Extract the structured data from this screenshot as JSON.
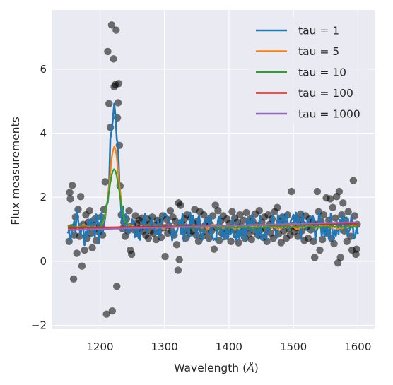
{
  "chart_data": {
    "type": "scatter",
    "xlabel": "Wavelength (",
    "xlabel_unit": "Å",
    "xlabel_end": ")",
    "ylabel": "Flux measurements",
    "xlim": [
      1126,
      1626
    ],
    "ylim": [
      -2.12,
      7.85
    ],
    "xticks": [
      1200,
      1300,
      1400,
      1500,
      1600
    ],
    "xtick_labels": [
      "1200",
      "1300",
      "1400",
      "1500",
      "1600"
    ],
    "yticks": [
      -2,
      0,
      2,
      4,
      6
    ],
    "ytick_labels": [
      "−2",
      "0",
      "2",
      "4",
      "6"
    ],
    "grid": true,
    "legend_placement": "upper-right",
    "background": "#eaeaf2",
    "scatter_color": "#000000",
    "scatter_alpha": 0.55,
    "scatter": [
      [
        1152,
        0.62
      ],
      [
        1153,
        2.15
      ],
      [
        1154,
        1.95
      ],
      [
        1156,
        1.05
      ],
      [
        1157,
        2.37
      ],
      [
        1159,
        -0.55
      ],
      [
        1160,
        0.82
      ],
      [
        1162,
        1.38
      ],
      [
        1164,
        0.25
      ],
      [
        1166,
        1.62
      ],
      [
        1168,
        0.78
      ],
      [
        1170,
        2.02
      ],
      [
        1172,
        -0.15
      ],
      [
        1174,
        1.15
      ],
      [
        1176,
        0.35
      ],
      [
        1178,
        1.45
      ],
      [
        1180,
        0.72
      ],
      [
        1182,
        1.22
      ],
      [
        1184,
        1.58
      ],
      [
        1186,
        0.88
      ],
      [
        1188,
        0.42
      ],
      [
        1190,
        1.12
      ],
      [
        1192,
        1.32
      ],
      [
        1194,
        0.65
      ],
      [
        1196,
        1.02
      ],
      [
        1198,
        0.92
      ],
      [
        1200,
        1.12
      ],
      [
        1202,
        1.38
      ],
      [
        1204,
        0.82
      ],
      [
        1206,
        1.62
      ],
      [
        1208,
        2.48
      ],
      [
        1210,
        -1.65
      ],
      [
        1212,
        6.55
      ],
      [
        1214,
        4.92
      ],
      [
        1216,
        4.18
      ],
      [
        1218,
        7.38
      ],
      [
        1219,
        -1.55
      ],
      [
        1221,
        6.32
      ],
      [
        1222,
        5.45
      ],
      [
        1224,
        5.52
      ],
      [
        1225,
        7.22
      ],
      [
        1226,
        -0.78
      ],
      [
        1227,
        4.48
      ],
      [
        1228,
        4.95
      ],
      [
        1229,
        5.55
      ],
      [
        1230,
        3.62
      ],
      [
        1231,
        2.35
      ],
      [
        1233,
        1.45
      ],
      [
        1235,
        1.02
      ],
      [
        1237,
        1.22
      ],
      [
        1239,
        0.78
      ],
      [
        1241,
        1.32
      ],
      [
        1243,
        0.95
      ],
      [
        1245,
        1.58
      ],
      [
        1247,
        0.35
      ],
      [
        1249,
        0.22
      ],
      [
        1251,
        1.12
      ],
      [
        1253,
        0.98
      ],
      [
        1255,
        1.42
      ],
      [
        1257,
        1.18
      ],
      [
        1259,
        0.85
      ],
      [
        1261,
        1.28
      ],
      [
        1263,
        1.05
      ],
      [
        1265,
        1.35
      ],
      [
        1267,
        0.95
      ],
      [
        1269,
        1.18
      ],
      [
        1271,
        0.82
      ],
      [
        1273,
        1.32
      ],
      [
        1275,
        0.72
      ],
      [
        1277,
        1.15
      ],
      [
        1279,
        0.95
      ],
      [
        1281,
        1.38
      ],
      [
        1283,
        0.88
      ],
      [
        1285,
        1.12
      ],
      [
        1287,
        0.68
      ],
      [
        1289,
        1.28
      ],
      [
        1291,
        0.95
      ],
      [
        1293,
        1.22
      ],
      [
        1295,
        0.75
      ],
      [
        1297,
        1.42
      ],
      [
        1299,
        1.05
      ],
      [
        1301,
        0.15
      ],
      [
        1303,
        1.32
      ],
      [
        1305,
        0.88
      ],
      [
        1307,
        1.12
      ],
      [
        1309,
        1.58
      ],
      [
        1311,
        0.95
      ],
      [
        1313,
        1.38
      ],
      [
        1315,
        0.82
      ],
      [
        1317,
        1.25
      ],
      [
        1319,
        0.52
      ],
      [
        1321,
        -0.28
      ],
      [
        1322,
        1.82
      ],
      [
        1323,
        0.05
      ],
      [
        1325,
        1.75
      ],
      [
        1327,
        1.18
      ],
      [
        1329,
        0.92
      ],
      [
        1331,
        1.32
      ],
      [
        1333,
        0.72
      ],
      [
        1335,
        1.45
      ],
      [
        1337,
        1.05
      ],
      [
        1339,
        0.88
      ],
      [
        1341,
        1.35
      ],
      [
        1343,
        0.95
      ],
      [
        1345,
        1.18
      ],
      [
        1347,
        1.62
      ],
      [
        1349,
        0.82
      ],
      [
        1351,
        1.25
      ],
      [
        1353,
        0.62
      ],
      [
        1355,
        1.55
      ],
      [
        1357,
        1.02
      ],
      [
        1359,
        0.78
      ],
      [
        1361,
        1.45
      ],
      [
        1363,
        1.12
      ],
      [
        1365,
        0.92
      ],
      [
        1367,
        1.28
      ],
      [
        1369,
        0.72
      ],
      [
        1371,
        1.15
      ],
      [
        1373,
        0.95
      ],
      [
        1375,
        1.42
      ],
      [
        1377,
        0.38
      ],
      [
        1379,
        1.75
      ],
      [
        1381,
        1.05
      ],
      [
        1383,
        1.58
      ],
      [
        1385,
        0.65
      ],
      [
        1387,
        1.25
      ],
      [
        1389,
        0.88
      ],
      [
        1391,
        1.42
      ],
      [
        1393,
        1.02
      ],
      [
        1395,
        0.78
      ],
      [
        1397,
        1.32
      ],
      [
        1399,
        0.95
      ],
      [
        1401,
        1.18
      ],
      [
        1403,
        0.62
      ],
      [
        1405,
        1.55
      ],
      [
        1407,
        0.98
      ],
      [
        1409,
        1.35
      ],
      [
        1411,
        0.82
      ],
      [
        1413,
        1.22
      ],
      [
        1415,
        0.58
      ],
      [
        1417,
        1.45
      ],
      [
        1419,
        1.08
      ],
      [
        1421,
        0.92
      ],
      [
        1423,
        1.28
      ],
      [
        1425,
        0.72
      ],
      [
        1427,
        1.52
      ],
      [
        1429,
        1.05
      ],
      [
        1431,
        0.85
      ],
      [
        1433,
        1.32
      ],
      [
        1435,
        0.68
      ],
      [
        1437,
        1.25
      ],
      [
        1439,
        0.95
      ],
      [
        1441,
        1.48
      ],
      [
        1443,
        1.12
      ],
      [
        1445,
        0.82
      ],
      [
        1447,
        1.58
      ],
      [
        1449,
        0.98
      ],
      [
        1451,
        1.22
      ],
      [
        1453,
        0.75
      ],
      [
        1455,
        1.38
      ],
      [
        1457,
        1.02
      ],
      [
        1459,
        0.62
      ],
      [
        1461,
        1.45
      ],
      [
        1463,
        1.15
      ],
      [
        1465,
        0.88
      ],
      [
        1467,
        1.32
      ],
      [
        1469,
        0.72
      ],
      [
        1471,
        1.55
      ],
      [
        1473,
        1.05
      ],
      [
        1475,
        1.68
      ],
      [
        1477,
        0.85
      ],
      [
        1479,
        1.25
      ],
      [
        1481,
        0.58
      ],
      [
        1483,
        1.38
      ],
      [
        1485,
        0.95
      ],
      [
        1487,
        1.18
      ],
      [
        1489,
        0.72
      ],
      [
        1491,
        1.45
      ],
      [
        1493,
        1.02
      ],
      [
        1495,
        0.82
      ],
      [
        1497,
        2.18
      ],
      [
        1499,
        1.12
      ],
      [
        1501,
        0.92
      ],
      [
        1503,
        1.35
      ],
      [
        1505,
        1.05
      ],
      [
        1507,
        0.78
      ],
      [
        1509,
        1.28
      ],
      [
        1511,
        1.48
      ],
      [
        1513,
        0.95
      ],
      [
        1515,
        1.15
      ],
      [
        1517,
        0.65
      ],
      [
        1519,
        1.42
      ],
      [
        1521,
        1.08
      ],
      [
        1523,
        0.72
      ],
      [
        1525,
        1.32
      ],
      [
        1527,
        0.98
      ],
      [
        1529,
        1.22
      ],
      [
        1531,
        0.62
      ],
      [
        1533,
        0.12
      ],
      [
        1535,
        1.15
      ],
      [
        1537,
        2.18
      ],
      [
        1539,
        1.55
      ],
      [
        1541,
        0.35
      ],
      [
        1543,
        1.25
      ],
      [
        1545,
        0.68
      ],
      [
        1547,
        1.45
      ],
      [
        1549,
        1.05
      ],
      [
        1551,
        1.98
      ],
      [
        1553,
        0.88
      ],
      [
        1555,
        1.28
      ],
      [
        1557,
        1.95
      ],
      [
        1559,
        0.72
      ],
      [
        1561,
        1.68
      ],
      [
        1563,
        0.55
      ],
      [
        1565,
        1.35
      ],
      [
        1567,
        2.02
      ],
      [
        1569,
        -0.05
      ],
      [
        1571,
        2.18
      ],
      [
        1573,
        0.12
      ],
      [
        1575,
        1.45
      ],
      [
        1577,
        1.82
      ],
      [
        1579,
        0.95
      ],
      [
        1581,
        1.28
      ],
      [
        1583,
        0.62
      ],
      [
        1585,
        1.55
      ],
      [
        1587,
        1.12
      ],
      [
        1589,
        0.78
      ],
      [
        1591,
        0.35
      ],
      [
        1593,
        2.52
      ],
      [
        1595,
        1.42
      ],
      [
        1597,
        0.22
      ],
      [
        1598,
        0.38
      ],
      [
        1599,
        1.15
      ]
    ],
    "series": [
      {
        "name": "tau = 1",
        "color": "#1f77b4",
        "width": 2.6,
        "style": "noisy",
        "noise": 0.45,
        "seed": 7,
        "peak_amp": 3.8,
        "peak_sigma": 6
      },
      {
        "name": "tau = 5",
        "color": "#ff7f0e",
        "width": 2.2,
        "style": "smooth",
        "noise": 0.13,
        "seed": 11,
        "peak_amp": 2.5,
        "peak_sigma": 7
      },
      {
        "name": "tau = 10",
        "color": "#2ca02c",
        "width": 2.2,
        "style": "smooth",
        "noise": 0.06,
        "seed": 13,
        "peak_amp": 1.8,
        "peak_sigma": 8
      },
      {
        "name": "tau = 100",
        "color": "#d62728",
        "width": 2.2,
        "style": "trend",
        "start": 1.04,
        "end": 1.18
      },
      {
        "name": "tau = 1000",
        "color": "#9467bd",
        "width": 2.2,
        "style": "trend",
        "start": 0.98,
        "end": 1.22
      }
    ]
  }
}
